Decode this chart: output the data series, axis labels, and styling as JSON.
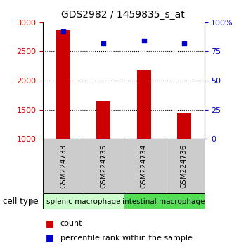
{
  "title": "GDS2982 / 1459835_s_at",
  "samples": [
    "GSM224733",
    "GSM224735",
    "GSM224734",
    "GSM224736"
  ],
  "counts": [
    2870,
    1650,
    2175,
    1450
  ],
  "percentile_ranks": [
    92,
    82,
    84,
    82
  ],
  "ylim_left": [
    1000,
    3000
  ],
  "ylim_right": [
    0,
    100
  ],
  "yticks_left": [
    1000,
    1500,
    2000,
    2500,
    3000
  ],
  "yticks_right": [
    0,
    25,
    50,
    75,
    100
  ],
  "ytick_labels_left": [
    "1000",
    "1500",
    "2000",
    "2500",
    "3000"
  ],
  "ytick_labels_right": [
    "0",
    "25",
    "50",
    "75",
    "100%"
  ],
  "bar_color": "#cc0000",
  "dot_color": "#0000cc",
  "cell_types": [
    {
      "label": "splenic macrophage",
      "samples": [
        0,
        1
      ],
      "color": "#ccffcc"
    },
    {
      "label": "intestinal macrophage",
      "samples": [
        2,
        3
      ],
      "color": "#55dd55"
    }
  ],
  "cell_type_label": "cell type",
  "legend_count_label": "count",
  "legend_pct_label": "percentile rank within the sample",
  "left_tick_color": "#cc0000",
  "right_tick_color": "#0000cc",
  "bar_bottom": 1000,
  "bg_xlabel": "#cccccc",
  "grid_color": "#000000"
}
